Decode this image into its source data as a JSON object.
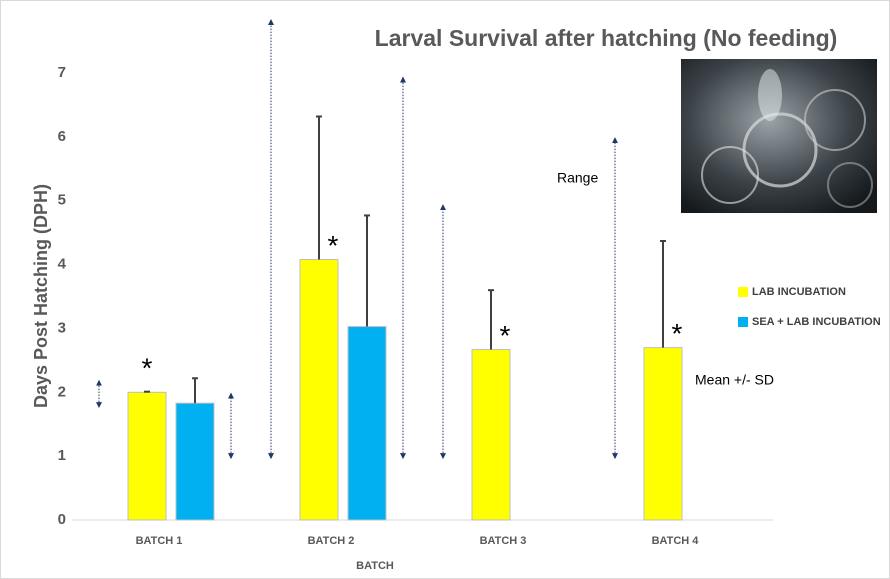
{
  "chart_data": {
    "type": "bar",
    "title": "Larval Survival after hatching (No feeding)",
    "y_label": "Days Post Hatching (DPH)",
    "x_label": "BATCH",
    "categories": [
      "BATCH 1",
      "BATCH 2",
      "BATCH 3",
      "BATCH 4"
    ],
    "series": [
      {
        "name": "LAB INCUBATION",
        "color": "#ffff00",
        "values": [
          2.0,
          4.08,
          2.67,
          2.7
        ],
        "errors": [
          0.01,
          2.24,
          0.93,
          1.67
        ],
        "range": [
          [
            1.8,
            2.15
          ],
          [
            1,
            7.8
          ],
          [
            1,
            4.9
          ],
          [
            1,
            5.95
          ]
        ],
        "markers": [
          "*",
          "*",
          "*",
          "*"
        ]
      },
      {
        "name": "SEA + LAB INCUBATION",
        "color": "#00b0f0",
        "values": [
          1.83,
          3.03,
          null,
          null
        ],
        "errors": [
          0.39,
          1.74,
          null,
          null
        ],
        "range": [
          [
            1,
            1.95
          ],
          [
            1,
            6.9
          ],
          null,
          null
        ]
      }
    ],
    "annotations": [
      "Range",
      "Mean +/- SD"
    ],
    "ylim": [
      0,
      7.8
    ],
    "yticks": [
      0,
      1,
      2,
      3,
      4,
      5,
      6,
      7
    ],
    "grid": false
  }
}
